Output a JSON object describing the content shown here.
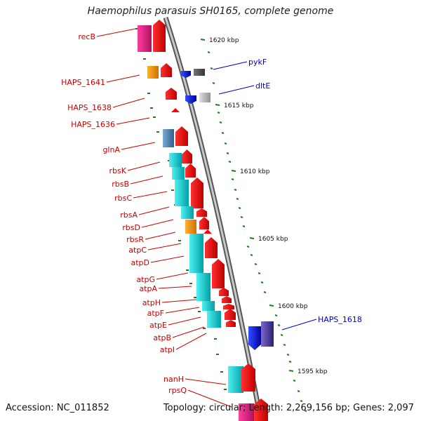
{
  "title": "Haemophilus parasuis SH0165, complete genome",
  "footer": {
    "accession": "Accession: NC_011852",
    "summary": "Topology: circular; Length: 2,269,156 bp; Genes: 2,097"
  },
  "colors": {
    "reverse_label": "#cc0000",
    "forward_label": "#0000cc",
    "backbone": "#8a8a8a",
    "tick": "#1f7a1f"
  },
  "scale_labels": [
    "1620 kbp",
    "1615 kbp",
    "1610 kbp",
    "1605 kbp",
    "1600 kbp",
    "1595 kbp"
  ],
  "reverse_genes": [
    "recB",
    "HAPS_1641",
    "HAPS_1638",
    "HAPS_1636",
    "glnA",
    "rbsK",
    "rbsB",
    "rbsC",
    "rbsA",
    "rbsD",
    "rbsR",
    "atpC",
    "atpD",
    "atpG",
    "atpA",
    "atpH",
    "atpF",
    "atpE",
    "atpB",
    "atpI",
    "nanH",
    "rpsQ"
  ],
  "forward_genes": [
    "pykF",
    "dltE",
    "HAPS_1618"
  ]
}
